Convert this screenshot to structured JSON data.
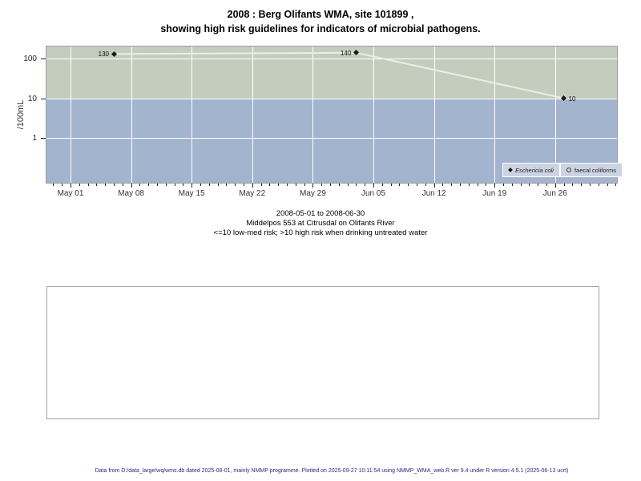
{
  "title": {
    "line1": "2008 : Berg Olifants WMA, site 101899 ,",
    "line2": "showing high risk guidelines for indicators of microbial pathogens."
  },
  "chart_data": {
    "type": "line",
    "title": "2008 : Berg Olifants WMA, site 101899 , showing high risk guidelines for indicators of microbial pathogens.",
    "ylabel": "/100mL",
    "y_scale": "log10",
    "y_ticks": [
      1,
      10,
      100
    ],
    "x_tick_labels": [
      "May 01",
      "May 08",
      "May 15",
      "May 22",
      "May 29",
      "Jun 05",
      "Jun 12",
      "Jun 19",
      "Jun 26"
    ],
    "x_tick_days": [
      0,
      7,
      14,
      21,
      28,
      35,
      42,
      49,
      56
    ],
    "x_range": "2008-05-01 to 2008-06-30",
    "grid": "white gridlines on",
    "legend_position": "bottom-right inside plot",
    "series": [
      {
        "name": "Eschericia coli",
        "marker": "filled-diamond",
        "points": [
          {
            "date": "2008-05-06",
            "day": 5,
            "value": 130,
            "label_side": "left"
          },
          {
            "date": "2008-06-03",
            "day": 33,
            "value": 140,
            "label_side": "left"
          },
          {
            "date": "2008-06-27",
            "day": 57,
            "value": 10,
            "label_side": "right"
          }
        ]
      },
      {
        "name": "faecal coliforms",
        "marker": "open-circle",
        "points": []
      }
    ],
    "bands": [
      {
        "label": "high risk (>10)",
        "color": "#c3cdbe"
      },
      {
        "label": "low-med risk (<=10)",
        "color": "#a3b4cf"
      }
    ],
    "line_color": "#eceee6",
    "point_color": "#1a1a1a"
  },
  "caption": {
    "line1": "2008-05-01 to 2008-06-30",
    "line2": "Middelpos 553 at Citrusdal on Olifants River",
    "line3": "<=10 low-med risk; >10 high risk when drinking untreated water"
  },
  "footer": {
    "text": "Data from D:/data_large/wq/wms.db dated 2025-08-01, mainly NMMP programme. Plotted on 2025-09-27 10:11:54 using NMMP_WMA_web.R ver 9.4 under R version 4.5.1 (2025-06-13 ucrt)"
  }
}
